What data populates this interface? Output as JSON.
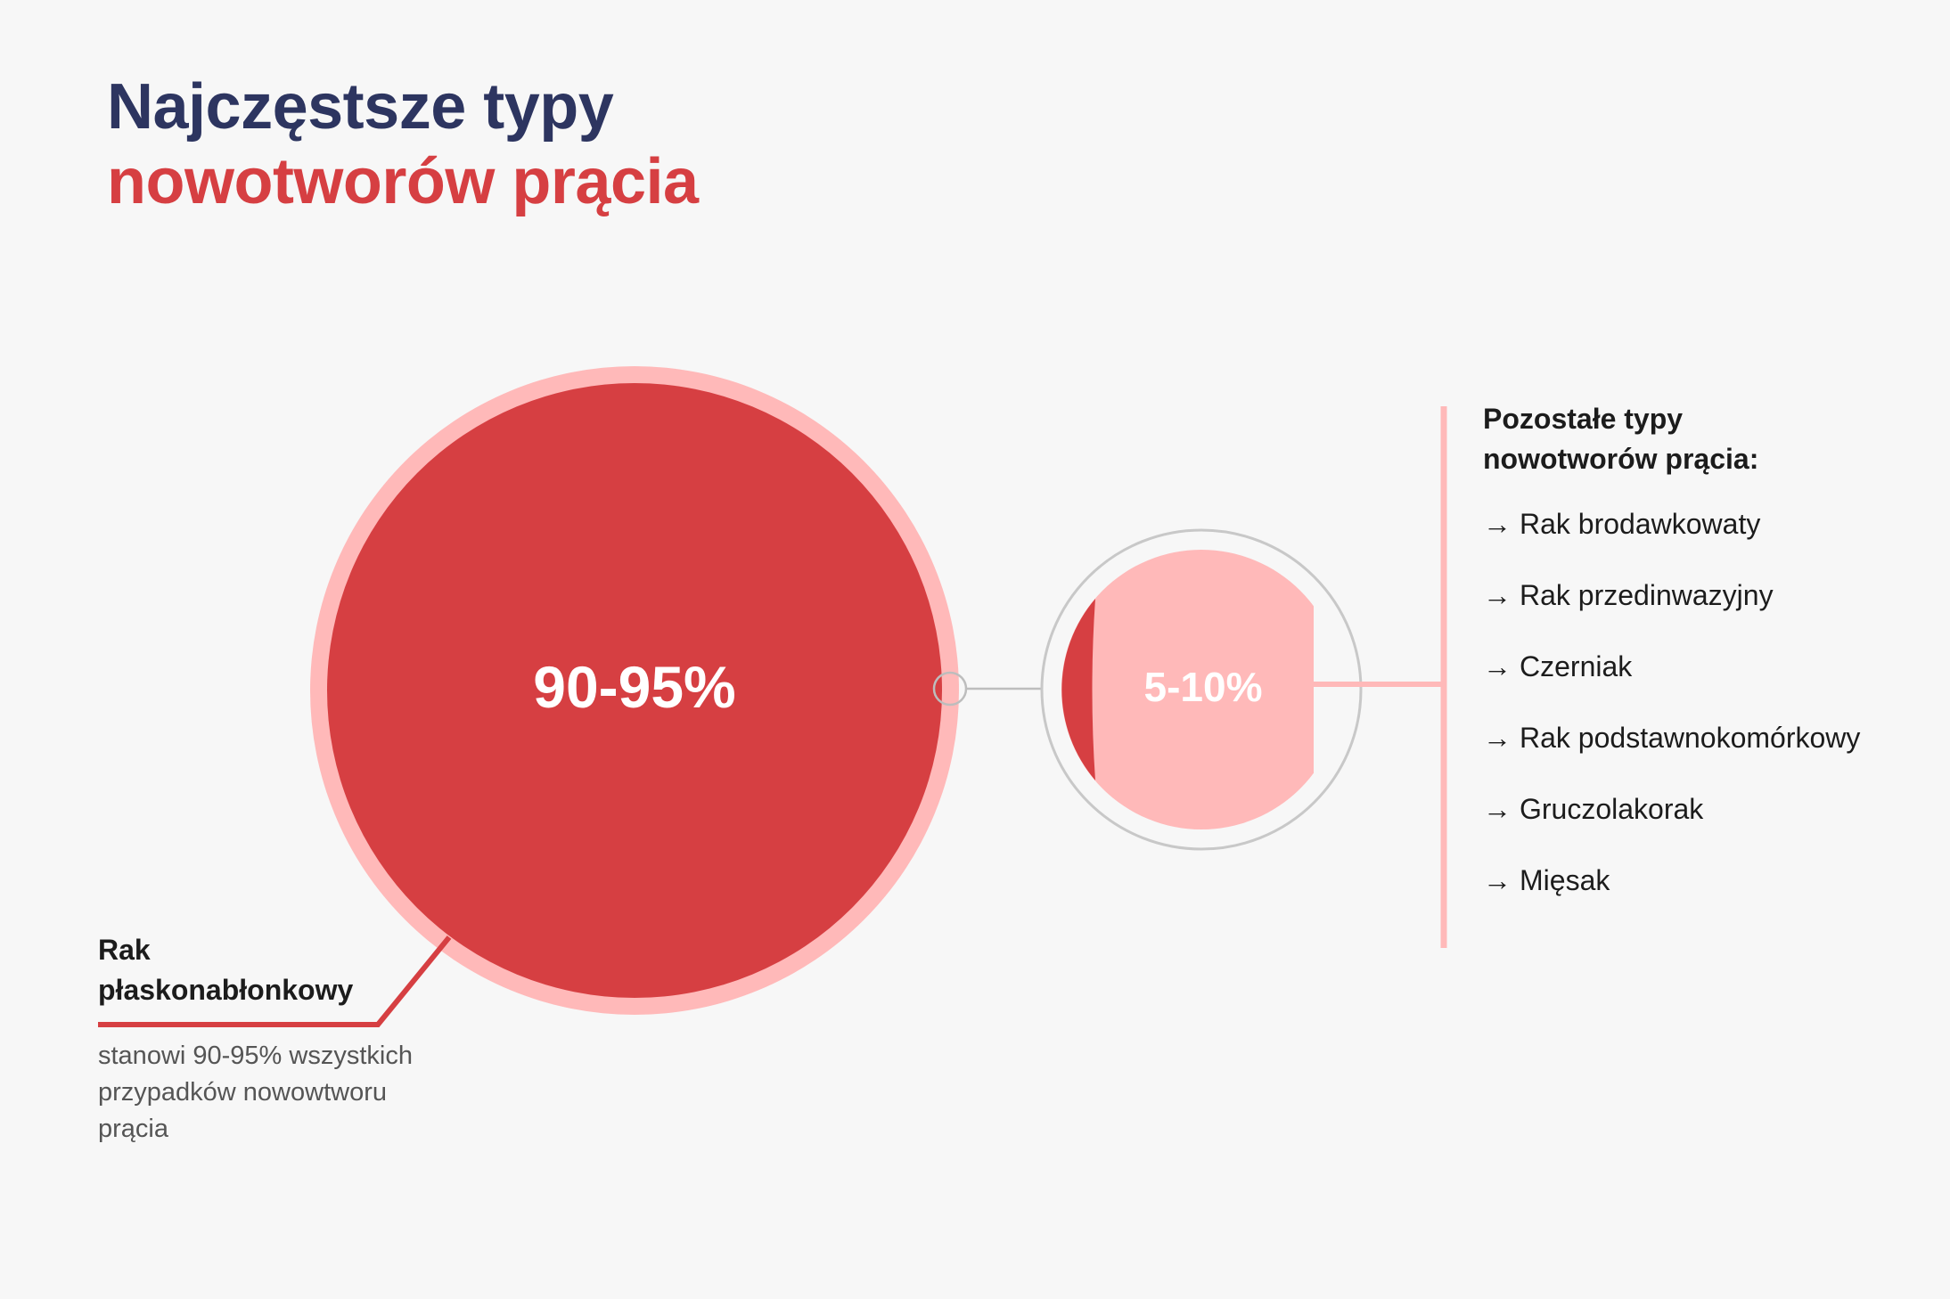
{
  "title": {
    "line1": "Najczęstsze typy",
    "line2": "nowotworów prącia"
  },
  "colors": {
    "navy": "#2d3560",
    "red": "#d63f42",
    "light_pink": "#ffb9b9",
    "gray_line": "#c8c8c8"
  },
  "main_circle": {
    "value": "90-95%",
    "label": "Rak płaskonabłonkowy",
    "description": "stanowi 90-95% wszystkich przypadków nowowtworu prącia"
  },
  "small_circle": {
    "value": "5-10%"
  },
  "others": {
    "title": "Pozostałe typy nowotworów prącia:",
    "arrow": "→",
    "items": [
      "Rak brodawkowaty",
      "Rak przedinwazyjny",
      "Czerniak",
      "Rak podstawnokomórkowy",
      "Gruczolakorak",
      "Mięsak"
    ]
  }
}
